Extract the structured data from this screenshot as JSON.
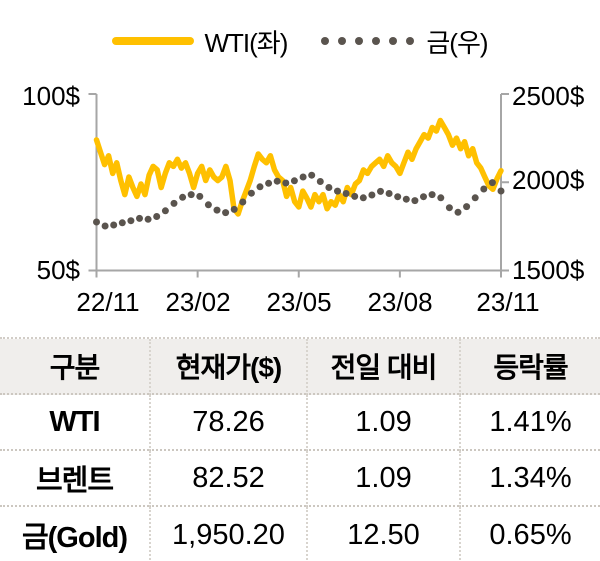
{
  "colors": {
    "wti_line": "#FFC000",
    "gold_dots": "#5A544E",
    "axis": "#A6A6A6",
    "table_header_bg": "#F0EEEC",
    "text": "#000000"
  },
  "chart_data": {
    "type": "line",
    "title": "",
    "grid": false,
    "legend_position": "top",
    "x_ticks": [
      "22/11",
      "23/02",
      "23/05",
      "23/08",
      "23/11"
    ],
    "y_left": {
      "min": 50,
      "max": 100,
      "ticks": [
        {
          "label": "100$",
          "value": 100
        },
        {
          "label": "50$",
          "value": 50
        }
      ]
    },
    "y_right": {
      "min": 1500,
      "max": 2500,
      "ticks": [
        {
          "label": "2500$",
          "value": 2500
        },
        {
          "label": "2000$",
          "value": 2000
        },
        {
          "label": "1500$",
          "value": 1500
        }
      ]
    },
    "series": [
      {
        "name": "WTI(좌)",
        "type": "line",
        "axis": "left",
        "color": "#FFC000",
        "values": [
          87,
          83.5,
          80,
          82.5,
          77.5,
          80.5,
          75.5,
          71.5,
          76.5,
          73.5,
          71,
          74.5,
          71.5,
          77,
          79.5,
          78.5,
          73.5,
          77.5,
          80.5,
          79.5,
          81.5,
          79,
          80.5,
          77.5,
          73.5,
          77.5,
          79.5,
          75.5,
          78.5,
          76.5,
          75.5,
          76.5,
          79.5,
          75.5,
          67.5,
          66,
          69.5,
          72.5,
          75.5,
          79.5,
          83,
          81.5,
          80.5,
          82.5,
          78.5,
          76.5,
          75.5,
          71,
          73.5,
          69.5,
          68,
          72.5,
          70.5,
          68,
          71.5,
          69.5,
          71.5,
          67.5,
          69.5,
          68.5,
          71.5,
          69.5,
          73.5,
          71.5,
          74.5,
          75.5,
          78.5,
          77.5,
          79.5,
          80.5,
          81.5,
          79.5,
          82.5,
          80.5,
          79.5,
          77.5,
          80.5,
          83.5,
          81.5,
          84.5,
          86.5,
          88.5,
          87.5,
          90.5,
          89.5,
          92.5,
          90.5,
          88.5,
          85.5,
          87.5,
          84.5,
          86.5,
          82.5,
          84.5,
          80.5,
          79,
          76.5,
          74,
          73,
          76,
          78.26
        ]
      },
      {
        "name": "금(우)",
        "type": "dots",
        "axis": "right",
        "color": "#5A544E",
        "values": [
          1775,
          1752,
          1758,
          1770,
          1782,
          1795,
          1790,
          1806,
          1838,
          1880,
          1915,
          1930,
          1920,
          1872,
          1842,
          1828,
          1846,
          1888,
          1938,
          1974,
          1994,
          2006,
          1996,
          2008,
          2030,
          2040,
          2004,
          1970,
          1950,
          1936,
          1920,
          1912,
          1928,
          1948,
          1936,
          1918,
          1904,
          1896,
          1918,
          1930,
          1912,
          1856,
          1830,
          1862,
          1912,
          1962,
          1998,
          1950.2
        ]
      }
    ]
  },
  "table": {
    "headers": [
      "구분",
      "현재가($)",
      "전일 대비",
      "등락률"
    ],
    "rows": [
      {
        "name": "WTI",
        "price": "78.26",
        "change": "1.09",
        "pct": "1.41%"
      },
      {
        "name": "브렌트",
        "price": "82.52",
        "change": "1.09",
        "pct": "1.34%"
      },
      {
        "name": "금(Gold)",
        "price": "1,950.20",
        "change": "12.50",
        "pct": "0.65%"
      }
    ]
  }
}
